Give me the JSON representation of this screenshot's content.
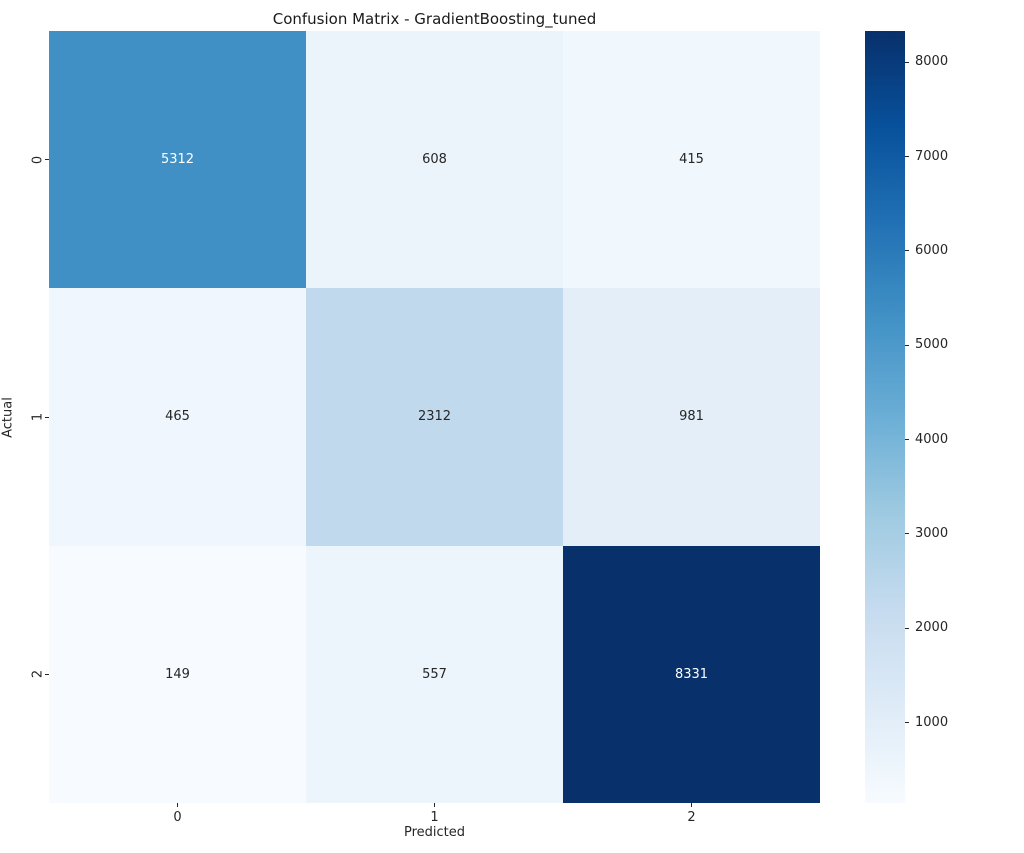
{
  "chart_data": {
    "type": "heatmap",
    "title": "Confusion Matrix - GradientBoosting_tuned",
    "xlabel": "Predicted",
    "ylabel": "Actual",
    "x_tick_labels": [
      "0",
      "1",
      "2"
    ],
    "y_tick_labels": [
      "0",
      "1",
      "2"
    ],
    "matrix": [
      [
        5312,
        608,
        415
      ],
      [
        465,
        2312,
        981
      ],
      [
        149,
        557,
        8331
      ]
    ],
    "vmin": 149,
    "vmax": 8331,
    "colormap": "Blues",
    "colormap_stops": [
      "#f7fbff",
      "#deebf7",
      "#c6dbef",
      "#9ecae1",
      "#6baed6",
      "#4292c6",
      "#2171b5",
      "#08519c",
      "#08306b"
    ],
    "annotation_text_dark": "#262626",
    "annotation_text_light": "#ffffff",
    "colorbar": {
      "position": "right",
      "ticks": [
        1000,
        2000,
        3000,
        4000,
        5000,
        6000,
        7000,
        8000
      ]
    },
    "grid": false,
    "background": "#ffffff"
  }
}
